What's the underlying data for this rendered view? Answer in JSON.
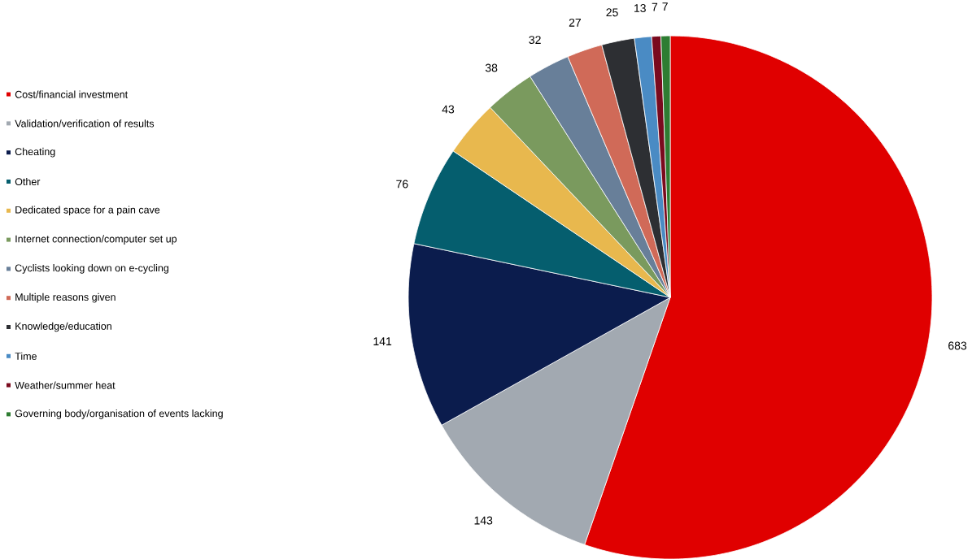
{
  "chart_data": {
    "type": "pie",
    "legend": "left",
    "data_labels": true,
    "categories": [
      "Cost/financial investment",
      "Validation/verification of results",
      "Cheating",
      "Other",
      "Dedicated space for a pain cave",
      "Internet connection/computer set up",
      "Cyclists looking down on e-cycling",
      "Multiple reasons given",
      "Knowledge/education",
      "Time",
      "Weather/summer heat",
      "Governing body/organisation of events lacking"
    ],
    "values": [
      683,
      143,
      141,
      76,
      43,
      38,
      32,
      27,
      25,
      13,
      7,
      7
    ],
    "colors": [
      "#e00000",
      "#a2a9b1",
      "#0b1c4d",
      "#055e6e",
      "#e8b84e",
      "#7a9a5e",
      "#687f99",
      "#d06a58",
      "#2d2f33",
      "#4a8bc4",
      "#7a0a1e",
      "#2e7d32"
    ]
  }
}
